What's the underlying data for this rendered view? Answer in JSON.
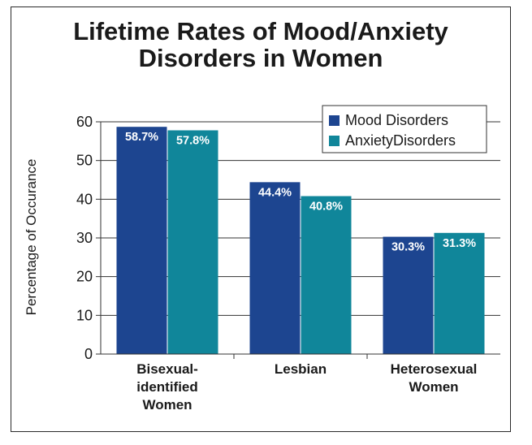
{
  "chart_data": {
    "type": "bar",
    "title_lines": [
      "Lifetime Rates of Mood/Anxiety",
      "Disorders in Women"
    ],
    "ylabel": "Percentage of Occurance",
    "xlabel": "",
    "ylim": [
      0,
      60
    ],
    "yticks": [
      0,
      10,
      20,
      30,
      40,
      50,
      60
    ],
    "grid": true,
    "legend_position": "top-right",
    "categories": [
      [
        "Bisexual-",
        "identified",
        "Women"
      ],
      [
        "Lesbian"
      ],
      [
        "Heterosexual",
        "Women"
      ]
    ],
    "series": [
      {
        "name": "Mood Disorders",
        "color": "#1d4590",
        "values": [
          58.7,
          44.4,
          30.3
        ],
        "labels": [
          "58.7%",
          "44.4%",
          "30.3%"
        ]
      },
      {
        "name": "AnxietyDisorders",
        "color": "#10869a",
        "values": [
          57.8,
          40.8,
          31.3
        ],
        "labels": [
          "57.8%",
          "40.8%",
          "31.3%"
        ]
      }
    ]
  }
}
